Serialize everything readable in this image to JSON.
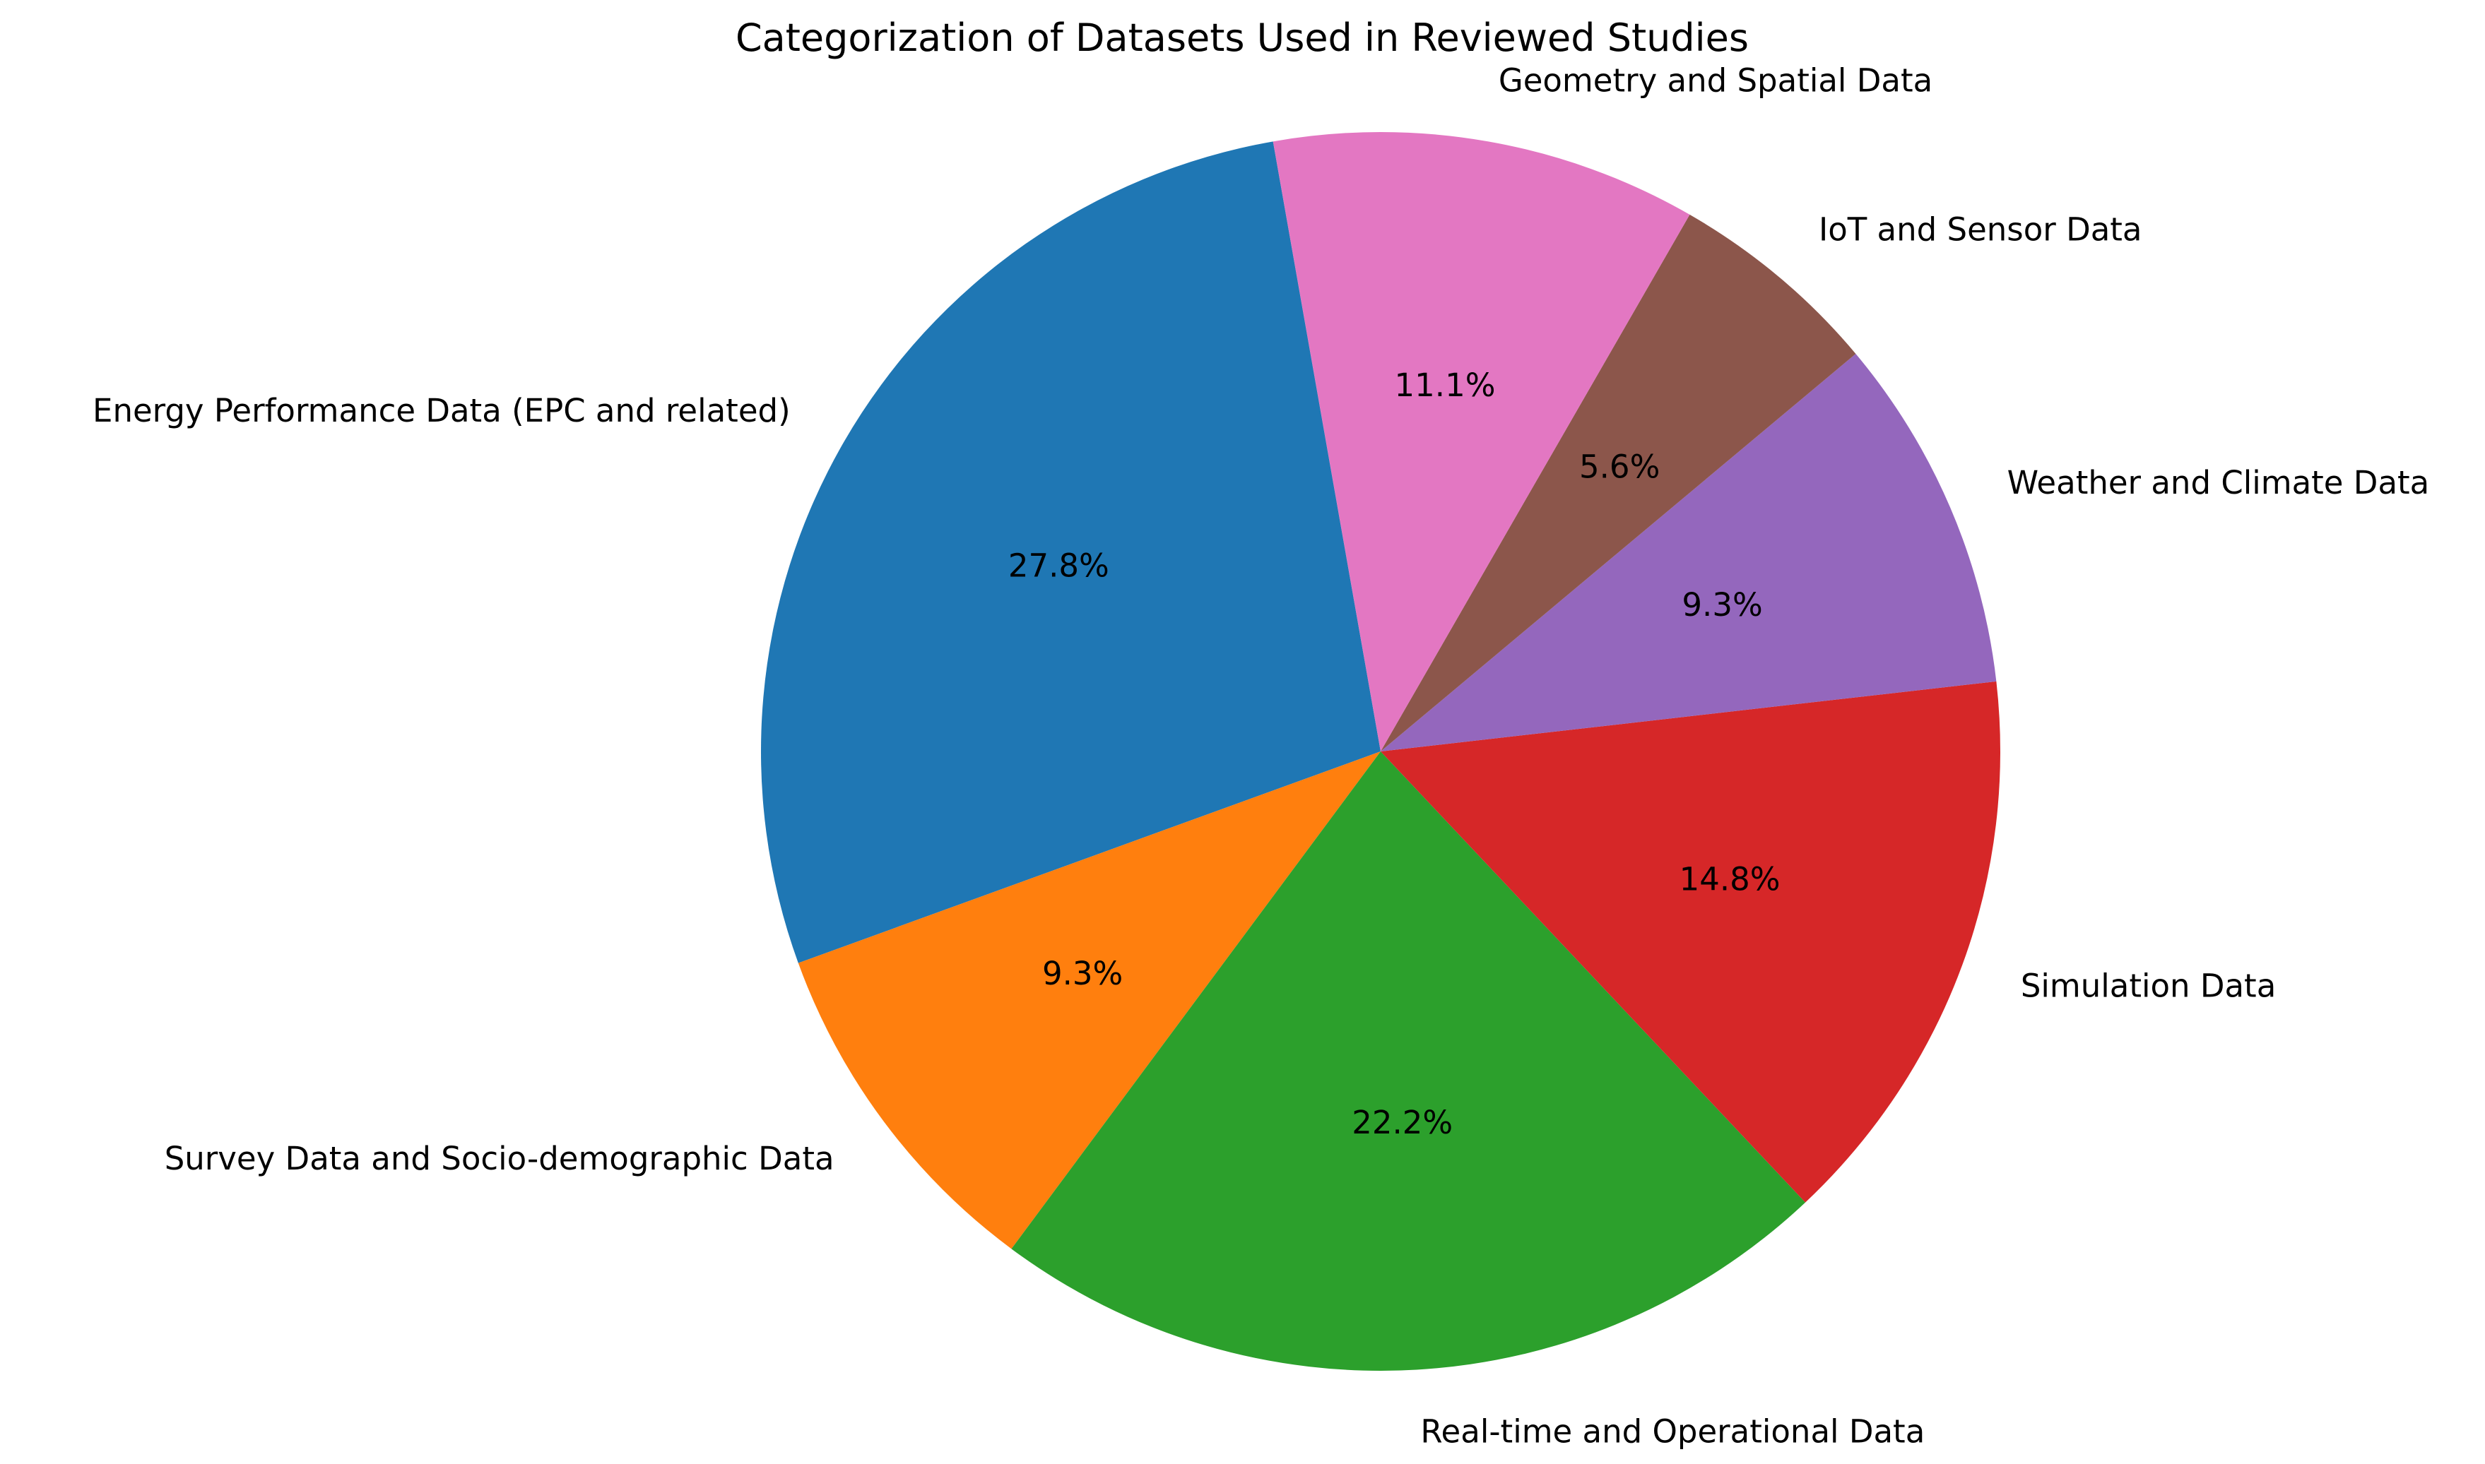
{
  "chart_data": {
    "type": "pie",
    "title": "Categorization of Datasets Used in Reviewed Studies",
    "start_angle_deg": 100,
    "direction": "counterclockwise",
    "slices": [
      {
        "label": "Energy Performance Data (EPC and related)",
        "percent": 27.8,
        "percent_label": "27.8%",
        "color": "#1f77b4"
      },
      {
        "label": "Survey Data and Socio-demographic Data",
        "percent": 9.3,
        "percent_label": "9.3%",
        "color": "#ff7f0e"
      },
      {
        "label": "Real-time and Operational Data",
        "percent": 22.2,
        "percent_label": "22.2%",
        "color": "#2ca02c"
      },
      {
        "label": "Simulation Data",
        "percent": 14.8,
        "percent_label": "14.8%",
        "color": "#d62728"
      },
      {
        "label": "Weather and Climate Data",
        "percent": 9.3,
        "percent_label": "9.3%",
        "color": "#9467bd"
      },
      {
        "label": "IoT and Sensor Data",
        "percent": 5.6,
        "percent_label": "5.6%",
        "color": "#8c564b"
      },
      {
        "label": "Geometry and Spatial Data",
        "percent": 11.1,
        "percent_label": "11.1%",
        "color": "#e377c2"
      }
    ]
  }
}
